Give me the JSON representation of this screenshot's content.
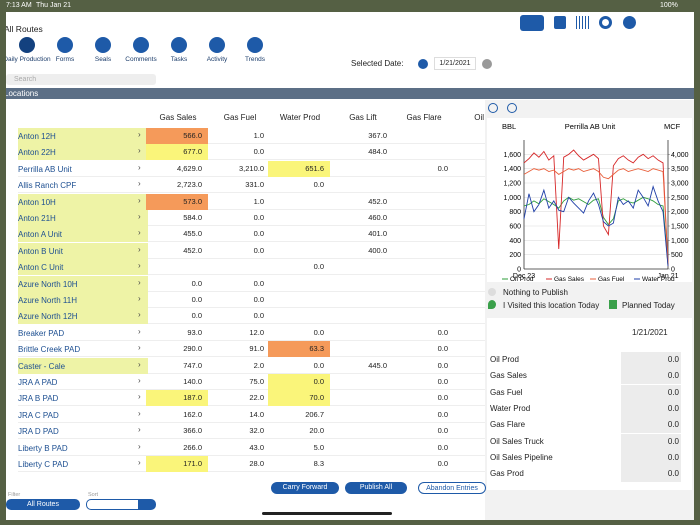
{
  "status_bar": {
    "time": "7:13 AM",
    "date": "Thu Jan 21",
    "battery": "100%"
  },
  "header": {
    "title": "All Routes",
    "search_placeholder": "Search",
    "selected_date_label": "Selected Date:",
    "selected_date": "1/21/2021"
  },
  "nav": [
    "Daily Production",
    "Forms",
    "Seals",
    "Comments",
    "Tasks",
    "Activity",
    "Trends"
  ],
  "section_title": "Locations",
  "table": {
    "columns": [
      "Gas Sales",
      "Gas Fuel",
      "Water Prod",
      "Gas Lift",
      "Gas Flare",
      "Oil Sal"
    ],
    "rows": [
      {
        "name": "Anton 12H",
        "cells": [
          "566.0",
          "1.0",
          null,
          "367.0",
          null
        ]
      },
      {
        "name": "Anton 22H",
        "cells": [
          "677.0",
          "0.0",
          null,
          "484.0",
          null
        ]
      },
      {
        "name": "Perrilla AB Unit",
        "cells": [
          "4,629.0",
          "3,210.0",
          "651.6",
          null,
          "0.0"
        ]
      },
      {
        "name": "Allis Ranch CPF",
        "cells": [
          "2,723.0",
          "331.0",
          "0.0",
          null,
          null
        ]
      },
      {
        "name": "Anton 10H",
        "cells": [
          "573.0",
          "1.0",
          null,
          "452.0",
          null
        ]
      },
      {
        "name": "Anton 21H",
        "cells": [
          "584.0",
          "0.0",
          null,
          "460.0",
          null
        ]
      },
      {
        "name": "Anton A Unit",
        "cells": [
          "455.0",
          "0.0",
          null,
          "401.0",
          null
        ]
      },
      {
        "name": "Anton B Unit",
        "cells": [
          "452.0",
          "0.0",
          null,
          "400.0",
          null
        ]
      },
      {
        "name": "Anton C Unit",
        "cells": [
          null,
          null,
          "0.0",
          null,
          null
        ]
      },
      {
        "name": "Azure North 10H",
        "cells": [
          "0.0",
          "0.0",
          null,
          null,
          null
        ]
      },
      {
        "name": "Azure North 11H",
        "cells": [
          "0.0",
          "0.0",
          null,
          null,
          null
        ]
      },
      {
        "name": "Azure North 12H",
        "cells": [
          "0.0",
          "0.0",
          null,
          null,
          null
        ]
      },
      {
        "name": "Breaker PAD",
        "cells": [
          "93.0",
          "12.0",
          "0.0",
          null,
          "0.0"
        ]
      },
      {
        "name": "Brittle Creek PAD",
        "cells": [
          "290.0",
          "91.0",
          "63.3",
          null,
          "0.0"
        ]
      },
      {
        "name": "Caster - Cale",
        "cells": [
          "747.0",
          "2.0",
          "0.0",
          "445.0",
          "0.0"
        ]
      },
      {
        "name": "JRA A PAD",
        "cells": [
          "140.0",
          "75.0",
          "0.0",
          null,
          "0.0"
        ]
      },
      {
        "name": "JRA B PAD",
        "cells": [
          "187.0",
          "22.0",
          "70.0",
          null,
          "0.0"
        ]
      },
      {
        "name": "JRA C PAD",
        "cells": [
          "162.0",
          "14.0",
          "206.7",
          null,
          "0.0"
        ]
      },
      {
        "name": "JRA D PAD",
        "cells": [
          "366.0",
          "32.0",
          "20.0",
          null,
          "0.0"
        ]
      },
      {
        "name": "Liberty B PAD",
        "cells": [
          "266.0",
          "43.0",
          "5.0",
          null,
          "0.0"
        ]
      },
      {
        "name": "Liberty C PAD",
        "cells": [
          "171.0",
          "28.0",
          "8.3",
          null,
          "0.0"
        ]
      }
    ]
  },
  "buttons": [
    "Carry Forward",
    "Publish All",
    "Abandon Entries"
  ],
  "footer": {
    "filter_label": "Filter",
    "filter_value": "All Routes",
    "sort_label": "Sort"
  },
  "chart_data": {
    "type": "line",
    "title": "Perrilla AB Unit",
    "y_label": "BBL",
    "y2_label": "MCF",
    "categories": [
      "Dec 23",
      null,
      null,
      null,
      null,
      null,
      null,
      null,
      null,
      null,
      null,
      null,
      null,
      null,
      null,
      null,
      null,
      null,
      null,
      null,
      null,
      null,
      null,
      null,
      null,
      null,
      null,
      null,
      null,
      "Jan 21"
    ],
    "ylim": [
      0,
      1800
    ],
    "yticks": [
      0,
      200,
      400,
      600,
      800,
      {
        "value": 1000,
        "label": "1,000"
      },
      {
        "value": 1200,
        "label": "1,200"
      },
      {
        "value": 1400,
        "label": "1,400"
      },
      {
        "value": 1600,
        "label": "1,600"
      }
    ],
    "y2lim": [
      0,
      4500
    ],
    "y2ticks": [
      0,
      500,
      {
        "value": 1000,
        "label": "1,000"
      },
      {
        "value": 1500,
        "label": "1,500"
      },
      {
        "value": 2000,
        "label": "2,000"
      },
      {
        "value": 2500,
        "label": "2,500"
      },
      {
        "value": 3000,
        "label": "3,000"
      },
      {
        "value": 3500,
        "label": "3,500"
      },
      {
        "value": 4000,
        "label": "4,000"
      }
    ],
    "grid": true,
    "series": [
      {
        "name": "Oil Prod",
        "color": "#2e9e3a",
        "values": [
          880,
          900,
          950,
          910,
          980,
          940,
          900,
          850,
          950,
          1000,
          960,
          980,
          940,
          900,
          960,
          980,
          720,
          620,
          700,
          950,
          980,
          940,
          920,
          960,
          1000,
          980,
          950,
          900,
          880,
          50
        ]
      },
      {
        "name": "Gas Sales",
        "color": "#d62728",
        "axis": "y2",
        "values": [
          3700,
          3850,
          4050,
          3900,
          4100,
          3800,
          3950,
          700,
          3900,
          4000,
          4150,
          3950,
          3800,
          3900,
          4000,
          3850,
          1500,
          1200,
          3600,
          3850,
          3950,
          3800,
          3700,
          3900,
          4000,
          3850,
          3950,
          3800,
          3700,
          100
        ]
      },
      {
        "name": "Gas Fuel",
        "color": "#e8603c",
        "axis": "y2",
        "values": [
          3300,
          3400,
          3500,
          3450,
          3500,
          3400,
          3450,
          3300,
          3400,
          3500,
          3450,
          3500,
          3400,
          3450,
          3500,
          3400,
          3200,
          3150,
          3300,
          3450,
          3500,
          3400,
          3450,
          3500,
          3450,
          3400,
          3500,
          3450,
          3400,
          200
        ]
      },
      {
        "name": "Water Prod",
        "color": "#1f3fa8",
        "values": [
          700,
          1050,
          800,
          900,
          1100,
          850,
          950,
          820,
          800,
          1000,
          920,
          850,
          780,
          950,
          1060,
          900,
          660,
          600,
          640,
          1000,
          900,
          950,
          850,
          1100,
          1000,
          880,
          1150,
          950,
          800,
          40
        ]
      }
    ]
  },
  "publish": {
    "status": "Nothing to Publish",
    "visited": "I Visited this location Today",
    "planned": "Planned Today"
  },
  "detail": {
    "date": "1/21/2021",
    "rows": [
      {
        "label": "Oil Prod",
        "value": "0.0"
      },
      {
        "label": "Gas Sales",
        "value": "0.0"
      },
      {
        "label": "Gas Fuel",
        "value": "0.0"
      },
      {
        "label": "Water Prod",
        "value": "0.0"
      },
      {
        "label": "Gas Flare",
        "value": "0.0"
      },
      {
        "label": "Oil Sales Truck",
        "value": "0.0"
      },
      {
        "label": "Oil Sales Pipeline",
        "value": "0.0"
      },
      {
        "label": "Gas Prod",
        "value": "0.0"
      }
    ]
  }
}
